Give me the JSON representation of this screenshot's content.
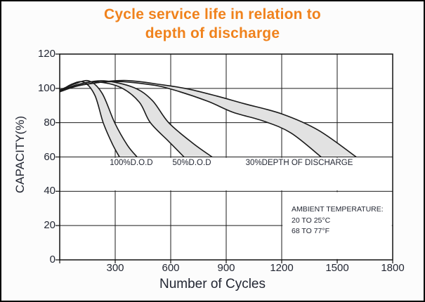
{
  "window": {
    "background": "#fcfcfc",
    "border_color": "#000000"
  },
  "title": {
    "line1": "Cycle service life in relation to",
    "line2": "depth of discharge",
    "color": "#f0821c"
  },
  "chart_data": {
    "type": "area",
    "title": "Cycle service life in relation to depth of discharge",
    "xlabel": "Number of Cycles",
    "ylabel": "CAPACITY(%)",
    "xlim": [
      0,
      1800
    ],
    "ylim": [
      0,
      120
    ],
    "x_ticks": [
      300,
      600,
      900,
      1200,
      1500,
      1800
    ],
    "y_ticks": [
      0,
      20,
      40,
      60,
      80,
      100,
      120
    ],
    "grid": true,
    "legend_position": "none",
    "colors": {
      "band_fill": "#e2e2e2",
      "curve": "#1a1a1a",
      "grid": "#1b1b1b",
      "plot_border": "#111111",
      "text": "#232733",
      "plot_background": "#ffffff"
    },
    "series": [
      {
        "name": "100%D.O.D",
        "label_center_cycles": 387,
        "lower": [
          [
            0,
            98
          ],
          [
            60,
            102.2
          ],
          [
            130,
            103.6
          ],
          [
            190,
            96
          ],
          [
            235,
            80
          ],
          [
            285,
            67.5
          ],
          [
            323,
            60
          ]
        ],
        "upper": [
          [
            0,
            99
          ],
          [
            80,
            102.6
          ],
          [
            160,
            104.3
          ],
          [
            230,
            97
          ],
          [
            297,
            80
          ],
          [
            365,
            67
          ],
          [
            418,
            60
          ]
        ]
      },
      {
        "name": "50%D.O.D",
        "label_center_cycles": 714,
        "lower": [
          [
            0,
            98
          ],
          [
            90,
            102
          ],
          [
            200,
            103.8
          ],
          [
            330,
            100.5
          ],
          [
            430,
            92
          ],
          [
            490,
            80
          ],
          [
            590,
            69
          ],
          [
            672,
            60
          ]
        ],
        "upper": [
          [
            0,
            99
          ],
          [
            110,
            102.5
          ],
          [
            240,
            104.4
          ],
          [
            400,
            100.5
          ],
          [
            500,
            93
          ],
          [
            589,
            80
          ],
          [
            720,
            68
          ],
          [
            824,
            60
          ]
        ]
      },
      {
        "name": "30%DEPTH OF DISCHARGE",
        "label_center_cycles": 1295,
        "lower": [
          [
            0,
            98
          ],
          [
            120,
            102
          ],
          [
            300,
            104
          ],
          [
            500,
            102
          ],
          [
            620,
            99
          ],
          [
            800,
            92.5
          ],
          [
            938,
            86
          ],
          [
            1100,
            81
          ],
          [
            1250,
            74
          ],
          [
            1413,
            60
          ]
        ],
        "upper": [
          [
            0,
            99
          ],
          [
            150,
            102.5
          ],
          [
            350,
            104.6
          ],
          [
            560,
            102
          ],
          [
            700,
            99.5
          ],
          [
            850,
            95.5
          ],
          [
            1000,
            91
          ],
          [
            1204,
            85
          ],
          [
            1400,
            75.5
          ],
          [
            1603,
            60
          ]
        ]
      }
    ],
    "annotation": {
      "lines": [
        "AMBIENT TEMPERATURE:",
        "20 TO 25°C",
        "68 TO 77°F"
      ]
    }
  }
}
